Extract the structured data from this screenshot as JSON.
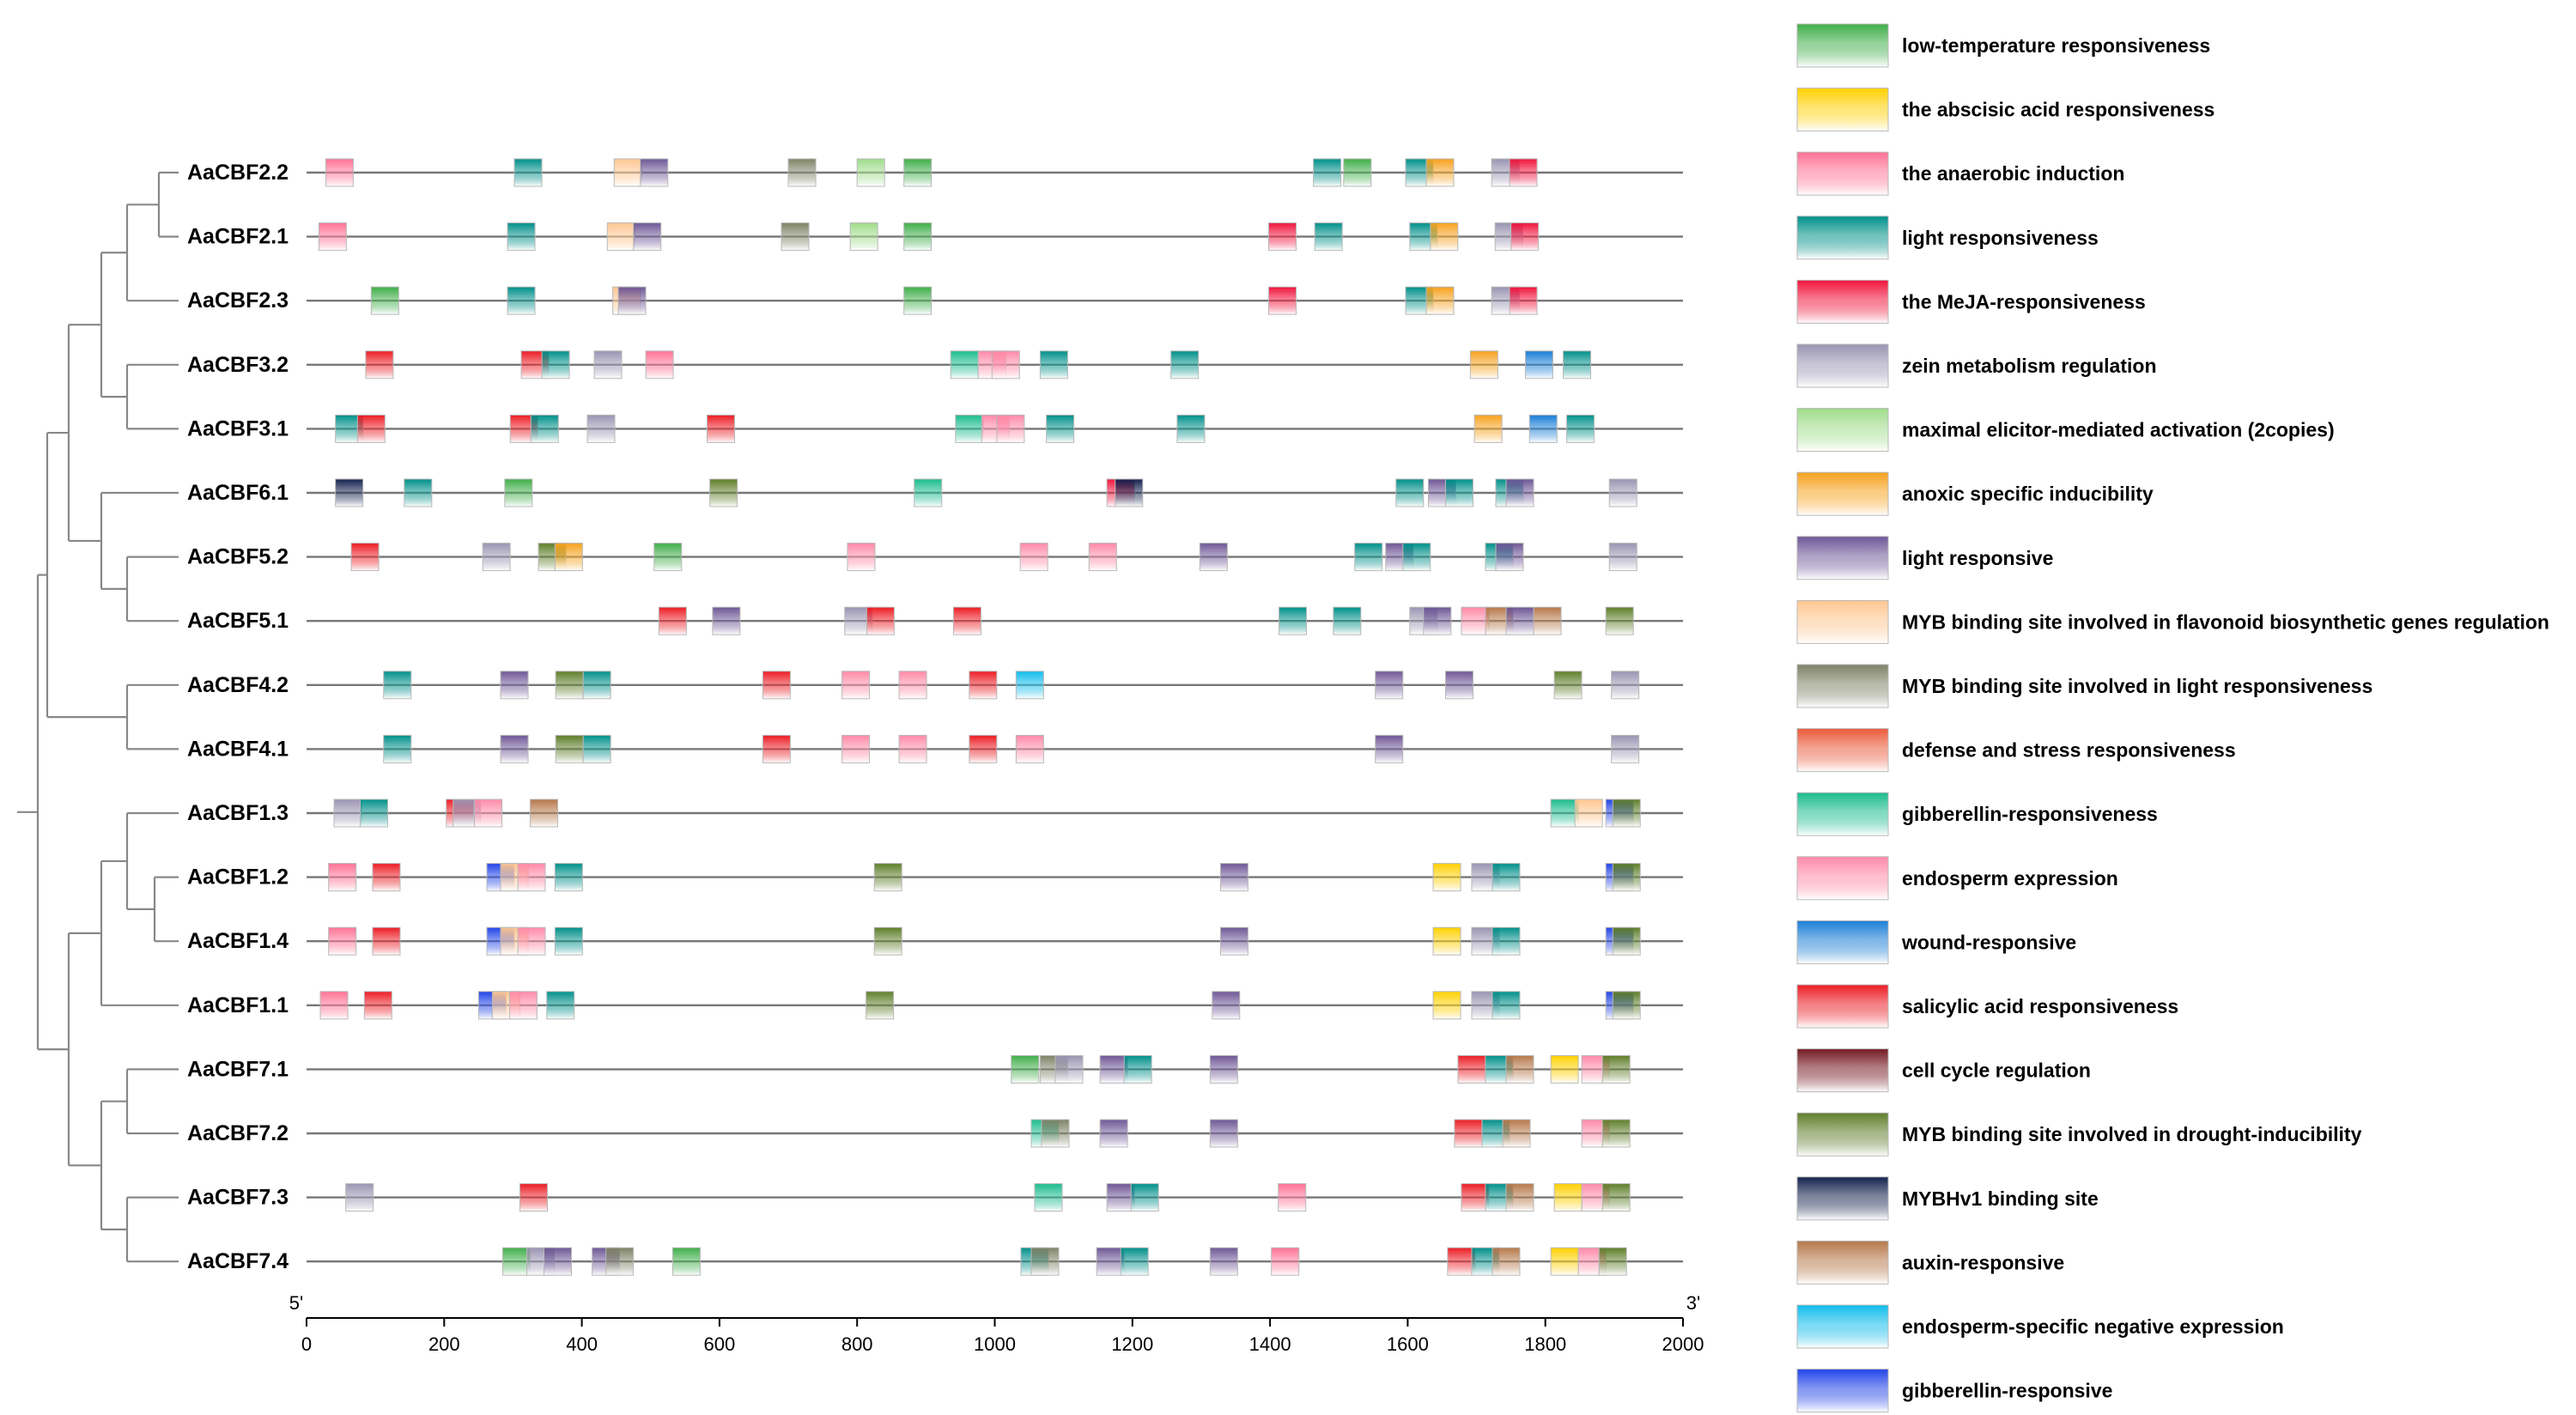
{
  "legend": [
    {
      "key": "lt",
      "label": "low-temperature responsiveness",
      "color": "#3fae49"
    },
    {
      "key": "aba",
      "label": "the abscisic acid responsiveness",
      "color": "#ffd000"
    },
    {
      "key": "ana",
      "label": "the anaerobic induction",
      "color": "#ff7294"
    },
    {
      "key": "lr",
      "label": "light responsiveness",
      "color": "#00908a"
    },
    {
      "key": "meja",
      "label": "the MeJA-responsiveness",
      "color": "#f0143c"
    },
    {
      "key": "zein",
      "label": "zein metabolism regulation",
      "color": "#9a94b2"
    },
    {
      "key": "mea",
      "label": "maximal elicitor-mediated activation (2copies)",
      "color": "#9fdc8a"
    },
    {
      "key": "anox",
      "label": "anoxic specific inducibility",
      "color": "#f6a21e"
    },
    {
      "key": "lrv",
      "label": "light responsive",
      "color": "#6e5696"
    },
    {
      "key": "mybf",
      "label": "MYB binding site involved in flavonoid biosynthetic genes regulation",
      "color": "#ffc690"
    },
    {
      "key": "mybl",
      "label": "MYB binding site involved in light responsiveness",
      "color": "#7e8266"
    },
    {
      "key": "def",
      "label": "defense and stress responsiveness",
      "color": "#ec5a3a"
    },
    {
      "key": "gib",
      "label": "gibberellin-responsiveness",
      "color": "#1abc8e"
    },
    {
      "key": "endo",
      "label": "endosperm expression",
      "color": "#ff8aa8"
    },
    {
      "key": "wnd",
      "label": "wound-responsive",
      "color": "#1a7ed6"
    },
    {
      "key": "sal",
      "label": "salicylic acid responsiveness",
      "color": "#ec1c24"
    },
    {
      "key": "cc",
      "label": "cell cycle regulation",
      "color": "#741820"
    },
    {
      "key": "mybd",
      "label": "MYB binding site involved in drought-inducibility",
      "color": "#5e7e2a"
    },
    {
      "key": "mybh",
      "label": "MYBHv1 binding site",
      "color": "#14224e"
    },
    {
      "key": "aux",
      "label": "auxin-responsive",
      "color": "#b6784a"
    },
    {
      "key": "esn",
      "label": "endosperm-specific negative expression",
      "color": "#10bcec"
    },
    {
      "key": "gibr",
      "label": "gibberellin-responsive",
      "color": "#2244e8"
    }
  ],
  "genes": [
    {
      "name": "AaCBF2.2",
      "motifs": [
        [
          "ana",
          28
        ],
        [
          "lr",
          302
        ],
        [
          "mybf",
          447
        ],
        [
          "lrv",
          485
        ],
        [
          "mybl",
          700
        ],
        [
          "mea",
          800
        ],
        [
          "lt",
          868
        ],
        [
          "lr",
          1463
        ],
        [
          "lt",
          1507
        ],
        [
          "lr",
          1597
        ],
        [
          "anox",
          1627
        ],
        [
          "zein",
          1722
        ],
        [
          "meja",
          1748
        ]
      ]
    },
    {
      "name": "AaCBF2.1",
      "motifs": [
        [
          "ana",
          18
        ],
        [
          "lr",
          292
        ],
        [
          "mybf",
          437
        ],
        [
          "lrv",
          475
        ],
        [
          "mybl",
          690
        ],
        [
          "mea",
          790
        ],
        [
          "lt",
          868
        ],
        [
          "meja",
          1398
        ],
        [
          "lr",
          1465
        ],
        [
          "lr",
          1603
        ],
        [
          "anox",
          1633
        ],
        [
          "zein",
          1727
        ],
        [
          "meja",
          1750
        ]
      ]
    },
    {
      "name": "AaCBF2.3",
      "motifs": [
        [
          "lt",
          94
        ],
        [
          "lr",
          292
        ],
        [
          "mybf",
          445
        ],
        [
          "lrv",
          453
        ],
        [
          "lt",
          868
        ],
        [
          "meja",
          1398
        ],
        [
          "lr",
          1597
        ],
        [
          "anox",
          1627
        ],
        [
          "zein",
          1722
        ],
        [
          "meja",
          1748
        ]
      ]
    },
    {
      "name": "AaCBF3.2",
      "motifs": [
        [
          "sal",
          86
        ],
        [
          "sal",
          312
        ],
        [
          "lr",
          342
        ],
        [
          "zein",
          418
        ],
        [
          "ana",
          493
        ],
        [
          "gib",
          936
        ],
        [
          "endo",
          976
        ],
        [
          "endo",
          996
        ],
        [
          "lr",
          1066
        ],
        [
          "lr",
          1256
        ],
        [
          "anox",
          1691
        ],
        [
          "wnd",
          1771
        ],
        [
          "lr",
          1826
        ]
      ]
    },
    {
      "name": "AaCBF3.1",
      "motifs": [
        [
          "lr",
          42
        ],
        [
          "sal",
          74
        ],
        [
          "sal",
          296
        ],
        [
          "lr",
          326
        ],
        [
          "zein",
          408
        ],
        [
          "sal",
          582
        ],
        [
          "gib",
          943
        ],
        [
          "endo",
          981
        ],
        [
          "endo",
          1003
        ],
        [
          "lr",
          1075
        ],
        [
          "lr",
          1265
        ],
        [
          "anox",
          1697
        ],
        [
          "wnd",
          1777
        ],
        [
          "lr",
          1831
        ]
      ]
    },
    {
      "name": "AaCBF6.1",
      "motifs": [
        [
          "mybh",
          42
        ],
        [
          "lr",
          142
        ],
        [
          "lt",
          288
        ],
        [
          "mybd",
          586
        ],
        [
          "gib",
          883
        ],
        [
          "meja",
          1163
        ],
        [
          "mybh",
          1175
        ],
        [
          "lr",
          1583
        ],
        [
          "lrv",
          1630
        ],
        [
          "lr",
          1655
        ],
        [
          "lr",
          1728
        ],
        [
          "lrv",
          1743
        ],
        [
          "zein",
          1893
        ]
      ]
    },
    {
      "name": "AaCBF5.2",
      "motifs": [
        [
          "sal",
          65
        ],
        [
          "zein",
          256
        ],
        [
          "mybd",
          337
        ],
        [
          "anox",
          361
        ],
        [
          "lt",
          505
        ],
        [
          "endo",
          786
        ],
        [
          "endo",
          1037
        ],
        [
          "endo",
          1137
        ],
        [
          "lrv",
          1298
        ],
        [
          "lr",
          1523
        ],
        [
          "lrv",
          1568
        ],
        [
          "lr",
          1593
        ],
        [
          "lr",
          1713
        ],
        [
          "lrv",
          1728
        ],
        [
          "zein",
          1893
        ]
      ]
    },
    {
      "name": "AaCBF5.1",
      "motifs": [
        [
          "sal",
          512
        ],
        [
          "lrv",
          590
        ],
        [
          "zein",
          782
        ],
        [
          "sal",
          814
        ],
        [
          "sal",
          940
        ],
        [
          "lr",
          1413
        ],
        [
          "lr",
          1492
        ],
        [
          "zein",
          1603
        ],
        [
          "lrv",
          1623
        ],
        [
          "endo",
          1678
        ],
        [
          "aux",
          1713
        ],
        [
          "lrv",
          1743
        ],
        [
          "aux",
          1783
        ],
        [
          "mybd",
          1888
        ]
      ]
    },
    {
      "name": "AaCBF4.2",
      "motifs": [
        [
          "lr",
          112
        ],
        [
          "lrv",
          282
        ],
        [
          "mybd",
          362
        ],
        [
          "lr",
          402
        ],
        [
          "sal",
          663
        ],
        [
          "endo",
          778
        ],
        [
          "endo",
          861
        ],
        [
          "sal",
          963
        ],
        [
          "esn",
          1031
        ],
        [
          "lrv",
          1553
        ],
        [
          "lrv",
          1655
        ],
        [
          "mybd",
          1813
        ],
        [
          "zein",
          1896
        ]
      ]
    },
    {
      "name": "AaCBF4.1",
      "motifs": [
        [
          "lr",
          112
        ],
        [
          "lrv",
          282
        ],
        [
          "mybd",
          362
        ],
        [
          "lr",
          402
        ],
        [
          "sal",
          663
        ],
        [
          "endo",
          778
        ],
        [
          "endo",
          861
        ],
        [
          "sal",
          963
        ],
        [
          "endo",
          1031
        ],
        [
          "lrv",
          1553
        ],
        [
          "zein",
          1896
        ]
      ]
    },
    {
      "name": "AaCBF1.3",
      "motifs": [
        [
          "zein",
          40
        ],
        [
          "lr",
          78
        ],
        [
          "sal",
          203
        ],
        [
          "zein",
          213
        ],
        [
          "endo",
          244
        ],
        [
          "aux",
          325
        ],
        [
          "gib",
          1808
        ],
        [
          "mybf",
          1843
        ],
        [
          "gibr",
          1888
        ],
        [
          "mybd",
          1898
        ]
      ]
    },
    {
      "name": "AaCBF1.2",
      "motifs": [
        [
          "ana",
          32
        ],
        [
          "sal",
          96
        ],
        [
          "gibr",
          262
        ],
        [
          "mybf",
          282
        ],
        [
          "endo",
          307
        ],
        [
          "lr",
          361
        ],
        [
          "mybd",
          825
        ],
        [
          "lrv",
          1328
        ],
        [
          "aba",
          1637
        ],
        [
          "zein",
          1693
        ],
        [
          "lr",
          1723
        ],
        [
          "gibr",
          1888
        ],
        [
          "mybd",
          1898
        ]
      ]
    },
    {
      "name": "AaCBF1.4",
      "motifs": [
        [
          "ana",
          32
        ],
        [
          "sal",
          96
        ],
        [
          "gibr",
          262
        ],
        [
          "mybf",
          282
        ],
        [
          "endo",
          307
        ],
        [
          "lr",
          361
        ],
        [
          "mybd",
          825
        ],
        [
          "lrv",
          1328
        ],
        [
          "aba",
          1637
        ],
        [
          "zein",
          1693
        ],
        [
          "lr",
          1723
        ],
        [
          "gibr",
          1888
        ],
        [
          "mybd",
          1898
        ]
      ]
    },
    {
      "name": "AaCBF1.1",
      "motifs": [
        [
          "ana",
          20
        ],
        [
          "sal",
          84
        ],
        [
          "gibr",
          250
        ],
        [
          "mybf",
          270
        ],
        [
          "endo",
          295
        ],
        [
          "lr",
          349
        ],
        [
          "mybd",
          813
        ],
        [
          "lrv",
          1316
        ],
        [
          "aba",
          1637
        ],
        [
          "zein",
          1693
        ],
        [
          "lr",
          1723
        ],
        [
          "gibr",
          1888
        ],
        [
          "mybd",
          1898
        ]
      ]
    },
    {
      "name": "AaCBF7.1",
      "motifs": [
        [
          "lt",
          1024
        ],
        [
          "mybl",
          1066
        ],
        [
          "zein",
          1088
        ],
        [
          "lrv",
          1153
        ],
        [
          "lr",
          1188
        ],
        [
          "lrv",
          1313
        ],
        [
          "sal",
          1673
        ],
        [
          "lr",
          1713
        ],
        [
          "aux",
          1743
        ],
        [
          "aba",
          1808
        ],
        [
          "endo",
          1853
        ],
        [
          "mybd",
          1883
        ]
      ]
    },
    {
      "name": "AaCBF7.2",
      "motifs": [
        [
          "gib",
          1053
        ],
        [
          "mybl",
          1068
        ],
        [
          "lrv",
          1153
        ],
        [
          "lrv",
          1313
        ],
        [
          "sal",
          1668
        ],
        [
          "lr",
          1708
        ],
        [
          "aux",
          1738
        ],
        [
          "endo",
          1853
        ],
        [
          "mybd",
          1883
        ]
      ]
    },
    {
      "name": "AaCBF7.3",
      "motifs": [
        [
          "zein",
          57
        ],
        [
          "sal",
          310
        ],
        [
          "gib",
          1058
        ],
        [
          "lrv",
          1163
        ],
        [
          "lr",
          1198
        ],
        [
          "ana",
          1412
        ],
        [
          "sal",
          1678
        ],
        [
          "lr",
          1713
        ],
        [
          "aux",
          1743
        ],
        [
          "aba",
          1813
        ],
        [
          "endo",
          1853
        ],
        [
          "mybd",
          1883
        ]
      ]
    },
    {
      "name": "AaCBF7.4",
      "motifs": [
        [
          "lt",
          285
        ],
        [
          "zein",
          320
        ],
        [
          "lrv",
          345
        ],
        [
          "lrv",
          415
        ],
        [
          "mybl",
          435
        ],
        [
          "lt",
          532
        ],
        [
          "lr",
          1038
        ],
        [
          "mybl",
          1053
        ],
        [
          "lrv",
          1148
        ],
        [
          "lr",
          1183
        ],
        [
          "lrv",
          1313
        ],
        [
          "ana",
          1402
        ],
        [
          "sal",
          1658
        ],
        [
          "lr",
          1693
        ],
        [
          "aux",
          1723
        ],
        [
          "aba",
          1808
        ],
        [
          "endo",
          1848
        ],
        [
          "mybd",
          1878
        ]
      ]
    }
  ],
  "axis": {
    "min": 0,
    "max": 2000,
    "ticks": [
      "0",
      "200",
      "400",
      "600",
      "800",
      "1000",
      "1200",
      "1400",
      "1600",
      "1800",
      "2000"
    ],
    "start_label": "5'",
    "end_label": "3'"
  }
}
